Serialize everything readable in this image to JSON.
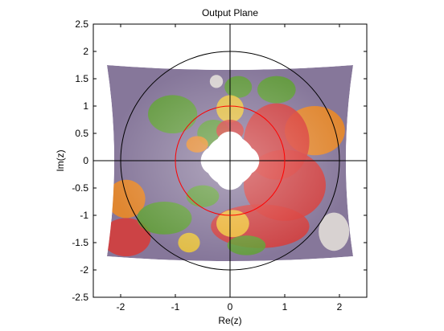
{
  "figure": {
    "title": "Output Plane",
    "xlabel": "Re(z)",
    "ylabel": "Im(z)"
  },
  "chart_data": {
    "type": "scatter",
    "title": "Output Plane",
    "xlabel": "Re(z)",
    "ylabel": "Im(z)",
    "xlim": [
      -2.5,
      2.5
    ],
    "ylim": [
      -2.5,
      2.5
    ],
    "xticks": [
      -2,
      -1,
      0,
      1,
      2
    ],
    "yticks": [
      2.5,
      2,
      1.5,
      1,
      0.5,
      0,
      -0.5,
      -1,
      -1.5,
      -2,
      -2.5
    ],
    "xtick_labels": [
      "-2",
      "-1",
      "0",
      "1",
      "2"
    ],
    "ytick_labels": [
      "2.5",
      "2",
      "1.5",
      "1",
      "0.5",
      "0",
      "-0.5",
      "-1",
      "-1.5",
      "-2",
      "-2.5"
    ],
    "grid": false,
    "axes_lines": [
      {
        "name": "real-axis",
        "from": [
          -2.5,
          0
        ],
        "to": [
          2.5,
          0
        ],
        "color": "#000000"
      },
      {
        "name": "imag-axis",
        "from": [
          0,
          -2.5
        ],
        "to": [
          0,
          2.5
        ],
        "color": "#000000"
      }
    ],
    "circles": [
      {
        "name": "outer-circle",
        "center": [
          0,
          0
        ],
        "radius": 2,
        "color": "#000000"
      },
      {
        "name": "unit-circle",
        "center": [
          0,
          0
        ],
        "radius": 1,
        "color": "#ff0000"
      }
    ],
    "image_region": {
      "description": "conformally mapped photo of peppers",
      "x_range": [
        -2.25,
        2.25
      ],
      "y_range": [
        -1.75,
        1.75
      ],
      "hole_radius": 0.5,
      "colors": {
        "background": "#86779a",
        "red_pepper": "#d83a36",
        "orange_pepper": "#f08a1e",
        "yellow_pepper": "#f0c93a",
        "green_pepper": "#5fa032",
        "garlic": "#e6e2da"
      }
    }
  }
}
